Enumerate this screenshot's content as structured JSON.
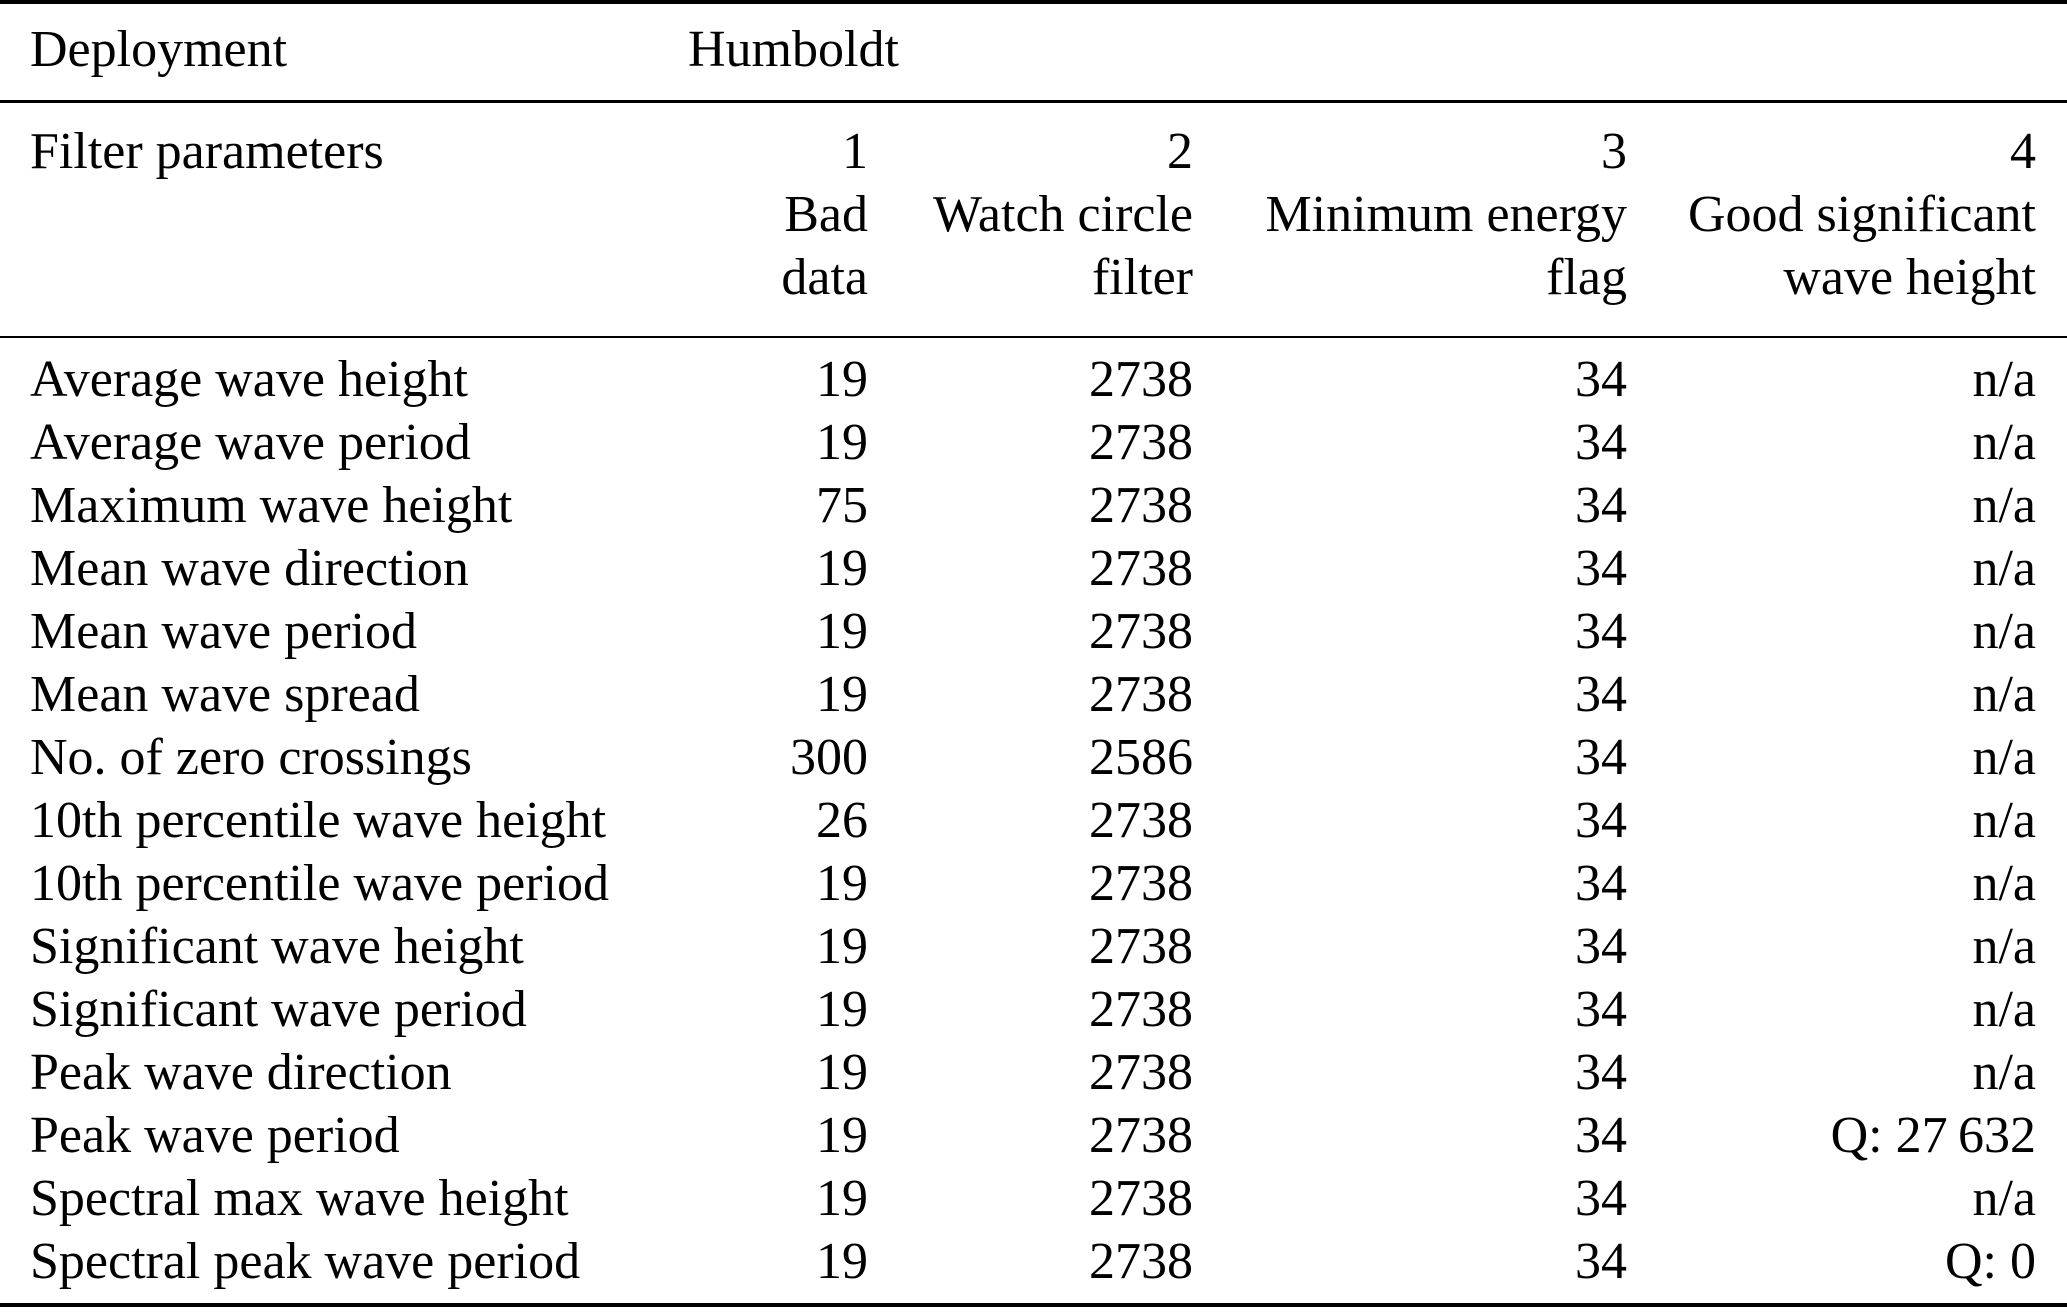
{
  "colors": {
    "text": "#000000",
    "background": "#ffffff"
  },
  "table": {
    "deployment_label": "Deployment",
    "deployment_value": "Humboldt",
    "filter_params_label": "Filter parameters",
    "columns": [
      {
        "number": "1",
        "name": "Bad data"
      },
      {
        "number": "2",
        "name": "Watch circle\nfilter"
      },
      {
        "number": "3",
        "name": "Minimum energy\nflag"
      },
      {
        "number": "4",
        "name": "Good significant\nwave height"
      }
    ],
    "rows": [
      {
        "label": "Average wave height",
        "bad_data": "19",
        "watch_circle": "2738",
        "min_energy": "34",
        "good_swh": "n/a"
      },
      {
        "label": "Average wave period",
        "bad_data": "19",
        "watch_circle": "2738",
        "min_energy": "34",
        "good_swh": "n/a"
      },
      {
        "label": "Maximum wave height",
        "bad_data": "75",
        "watch_circle": "2738",
        "min_energy": "34",
        "good_swh": "n/a"
      },
      {
        "label": "Mean wave direction",
        "bad_data": "19",
        "watch_circle": "2738",
        "min_energy": "34",
        "good_swh": "n/a"
      },
      {
        "label": "Mean wave period",
        "bad_data": "19",
        "watch_circle": "2738",
        "min_energy": "34",
        "good_swh": "n/a"
      },
      {
        "label": "Mean wave spread",
        "bad_data": "19",
        "watch_circle": "2738",
        "min_energy": "34",
        "good_swh": "n/a"
      },
      {
        "label": "No. of zero crossings",
        "bad_data": "300",
        "watch_circle": "2586",
        "min_energy": "34",
        "good_swh": "n/a"
      },
      {
        "label": "10th percentile wave height",
        "bad_data": "26",
        "watch_circle": "2738",
        "min_energy": "34",
        "good_swh": "n/a"
      },
      {
        "label": "10th percentile wave period",
        "bad_data": "19",
        "watch_circle": "2738",
        "min_energy": "34",
        "good_swh": "n/a"
      },
      {
        "label": "Significant wave height",
        "bad_data": "19",
        "watch_circle": "2738",
        "min_energy": "34",
        "good_swh": "n/a"
      },
      {
        "label": "Significant wave period",
        "bad_data": "19",
        "watch_circle": "2738",
        "min_energy": "34",
        "good_swh": "n/a"
      },
      {
        "label": "Peak wave direction",
        "bad_data": "19",
        "watch_circle": "2738",
        "min_energy": "34",
        "good_swh": "n/a"
      },
      {
        "label": "Peak wave period",
        "bad_data": "19",
        "watch_circle": "2738",
        "min_energy": "34",
        "good_swh": "Q: 27 632"
      },
      {
        "label": "Spectral max wave height",
        "bad_data": "19",
        "watch_circle": "2738",
        "min_energy": "34",
        "good_swh": "n/a"
      },
      {
        "label": "Spectral peak wave period",
        "bad_data": "19",
        "watch_circle": "2738",
        "min_energy": "34",
        "good_swh": "Q: 0"
      }
    ]
  }
}
